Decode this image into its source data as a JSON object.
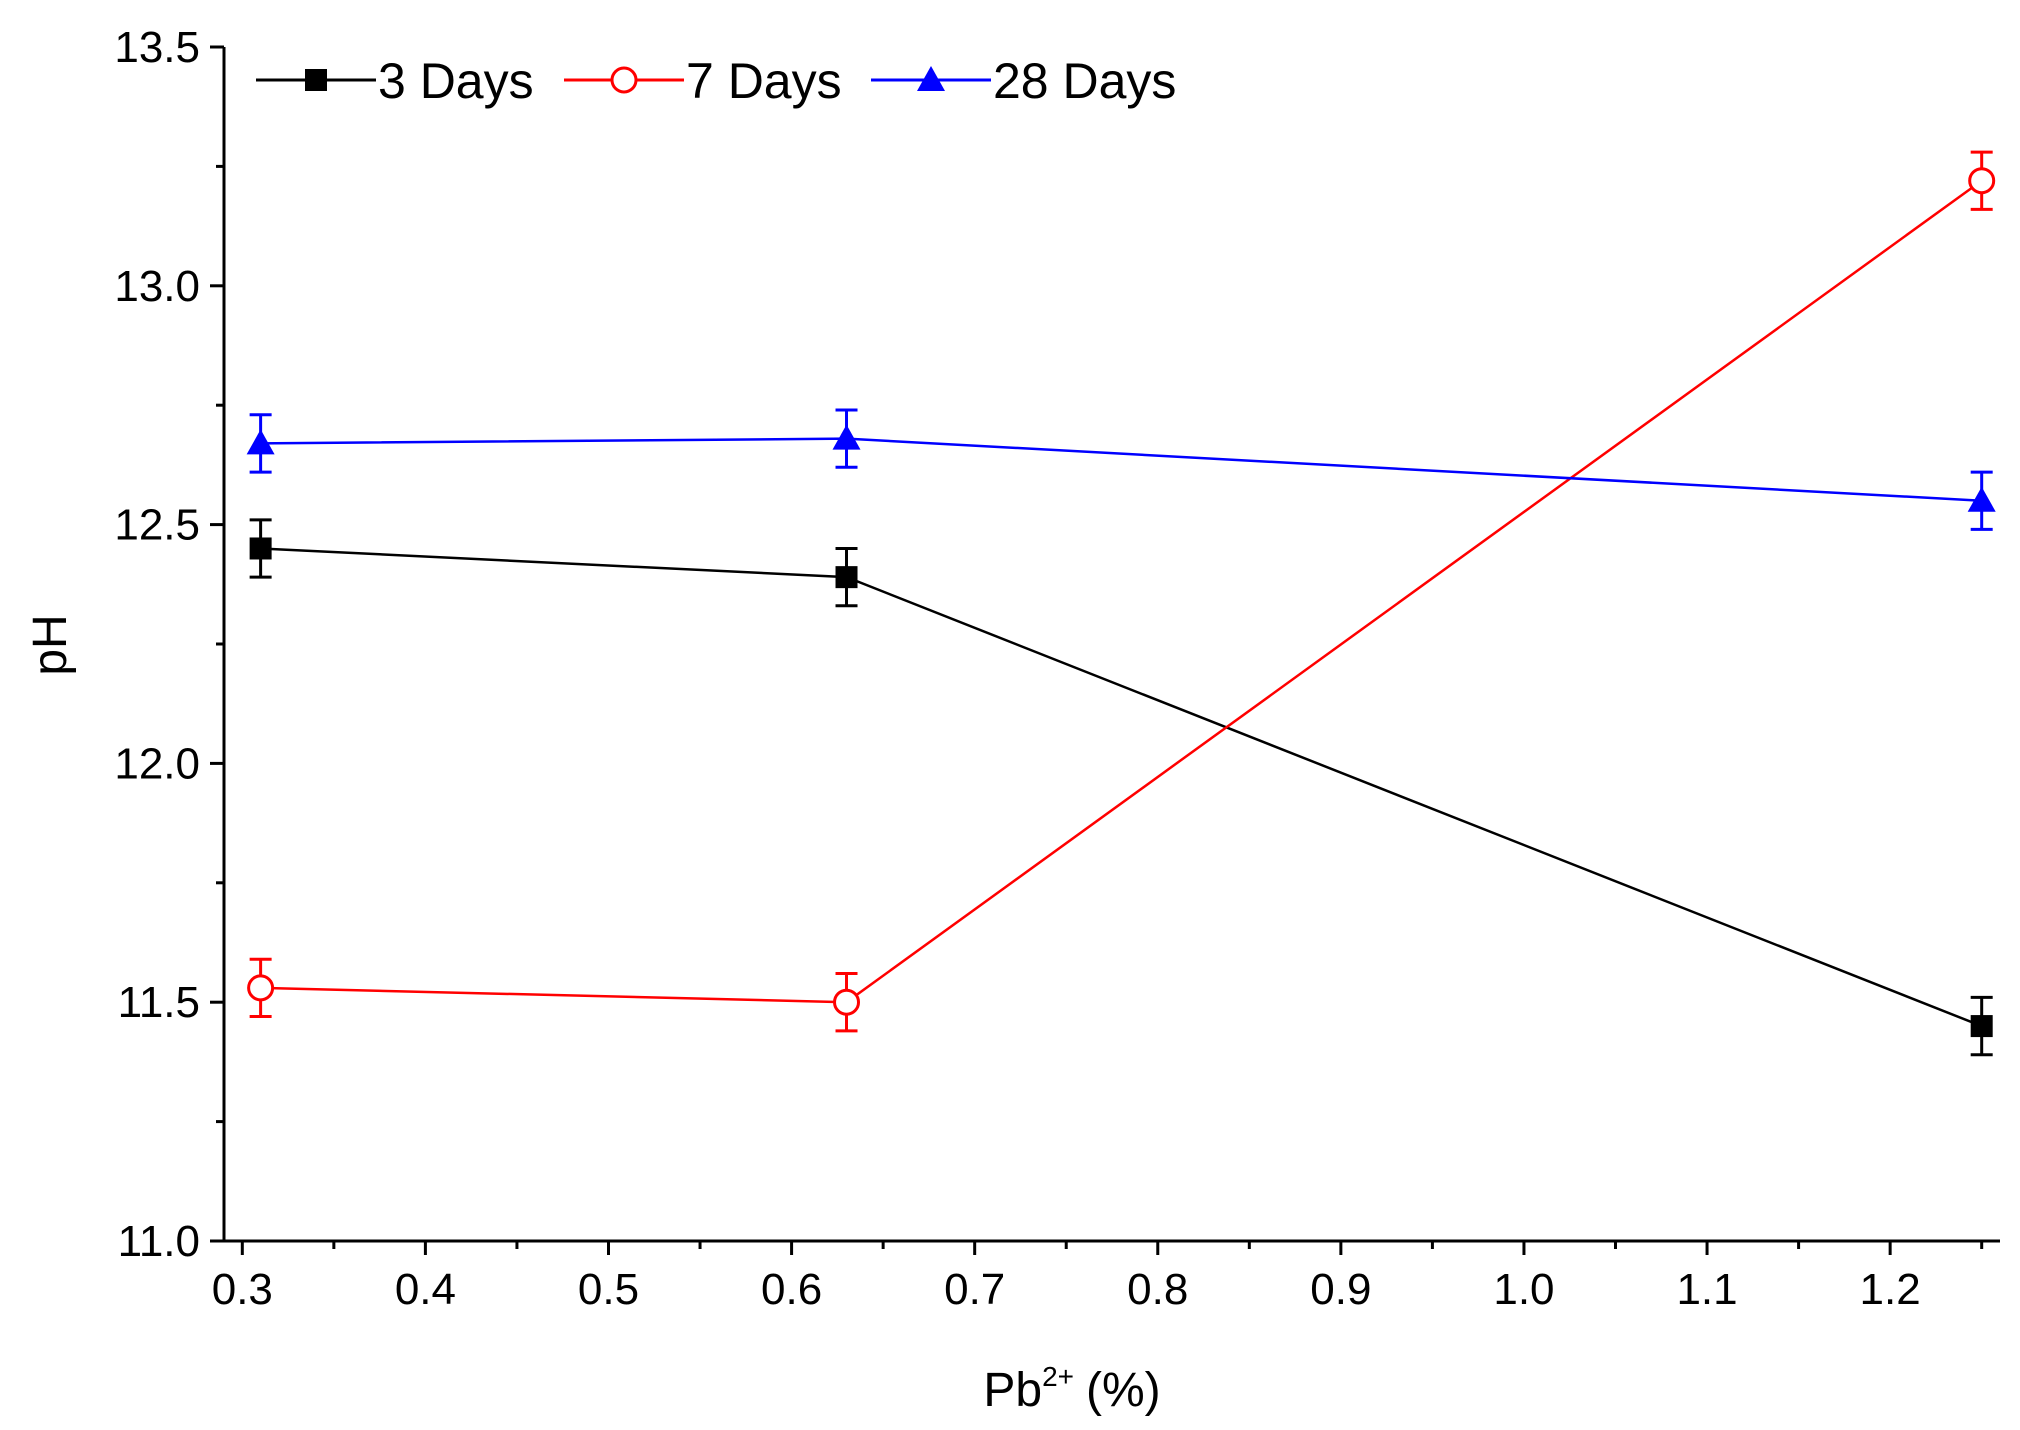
{
  "chart_data": {
    "type": "line",
    "title": "",
    "xlabel": {
      "base": "Pb",
      "sup": "2+",
      "unit": "(%)"
    },
    "ylabel": "pH",
    "xlim": [
      0.29,
      1.26
    ],
    "ylim": [
      11.0,
      13.5
    ],
    "xticks": [
      0.3,
      0.4,
      0.5,
      0.6,
      0.7,
      0.8,
      0.9,
      1.0,
      1.1,
      1.2
    ],
    "xtick_labels": [
      "0.3",
      "0.4",
      "0.5",
      "0.6",
      "0.7",
      "0.8",
      "0.9",
      "1.0",
      "1.1",
      "1.2"
    ],
    "yticks": [
      11.0,
      11.5,
      12.0,
      12.5,
      13.0,
      13.5
    ],
    "ytick_labels": [
      "11.0",
      "11.5",
      "12.0",
      "12.5",
      "13.0",
      "13.5"
    ],
    "grid": false,
    "legend_position": "top-left",
    "x": [
      0.31,
      0.63,
      1.25
    ],
    "series": [
      {
        "name": "3 Days",
        "color": "#000000",
        "marker": "filled-square",
        "values": [
          12.45,
          12.39,
          11.45
        ],
        "errors": [
          0.06,
          0.06,
          0.06
        ]
      },
      {
        "name": "7 Days",
        "color": "#ff0000",
        "marker": "open-circle",
        "values": [
          11.53,
          11.5,
          13.22
        ],
        "errors": [
          0.06,
          0.06,
          0.06
        ]
      },
      {
        "name": "28 Days",
        "color": "#0000ff",
        "marker": "filled-triangle",
        "values": [
          12.67,
          12.68,
          12.55
        ],
        "errors": [
          0.06,
          0.06,
          0.06
        ]
      }
    ]
  }
}
